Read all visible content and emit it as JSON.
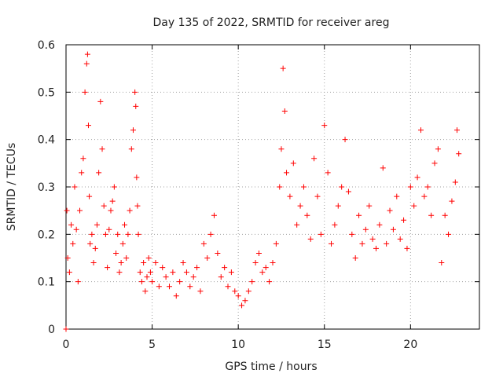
{
  "chart_data": {
    "type": "scatter",
    "title": "Day 135 of 2022, SRMTID for receiver areg",
    "xlabel": "GPS time / hours",
    "ylabel": "SRMTID / TECUs",
    "xlim": [
      0,
      24
    ],
    "ylim": [
      0,
      0.6
    ],
    "x_ticks": [
      0,
      5,
      10,
      15,
      20
    ],
    "x_tick_labels": [
      "0",
      "5",
      "10",
      "15",
      "20"
    ],
    "y_ticks": [
      0,
      0.1,
      0.2,
      0.3,
      0.4,
      0.5,
      0.6
    ],
    "y_tick_labels": [
      "0",
      "0.1",
      "0.2",
      "0.3",
      "0.4",
      "0.5",
      "0.6"
    ],
    "grid": true,
    "marker": "+",
    "color": "#ff0000",
    "series": [
      {
        "name": "SRMTID",
        "x": [
          0.0,
          0.05,
          0.1,
          0.2,
          0.3,
          0.4,
          0.5,
          0.6,
          0.7,
          0.8,
          0.9,
          1.0,
          1.1,
          1.2,
          1.25,
          1.3,
          1.35,
          1.4,
          1.5,
          1.6,
          1.7,
          1.8,
          1.9,
          2.0,
          2.1,
          2.2,
          2.3,
          2.4,
          2.5,
          2.6,
          2.7,
          2.8,
          2.9,
          3.0,
          3.1,
          3.2,
          3.3,
          3.4,
          3.5,
          3.6,
          3.7,
          3.8,
          3.9,
          4.0,
          4.05,
          4.1,
          4.15,
          4.2,
          4.3,
          4.4,
          4.5,
          4.6,
          4.7,
          4.8,
          4.9,
          5.0,
          5.2,
          5.4,
          5.6,
          5.8,
          6.0,
          6.2,
          6.4,
          6.6,
          6.8,
          7.0,
          7.2,
          7.4,
          7.6,
          7.8,
          8.0,
          8.2,
          8.4,
          8.6,
          8.8,
          9.0,
          9.2,
          9.4,
          9.6,
          9.8,
          10.0,
          10.2,
          10.4,
          10.6,
          10.8,
          11.0,
          11.2,
          11.4,
          11.6,
          11.8,
          12.0,
          12.2,
          12.4,
          12.5,
          12.6,
          12.7,
          12.8,
          13.0,
          13.2,
          13.4,
          13.6,
          13.8,
          14.0,
          14.2,
          14.4,
          14.6,
          14.8,
          15.0,
          15.2,
          15.4,
          15.6,
          15.8,
          16.0,
          16.2,
          16.4,
          16.6,
          16.8,
          17.0,
          17.2,
          17.4,
          17.6,
          17.8,
          18.0,
          18.2,
          18.4,
          18.6,
          18.8,
          19.0,
          19.2,
          19.4,
          19.6,
          19.8,
          20.0,
          20.2,
          20.4,
          20.6,
          20.8,
          21.0,
          21.2,
          21.4,
          21.6,
          21.8,
          22.0,
          22.2,
          22.4,
          22.6,
          22.7,
          22.8
        ],
        "y": [
          0.0,
          0.25,
          0.15,
          0.12,
          0.22,
          0.18,
          0.3,
          0.21,
          0.1,
          0.25,
          0.33,
          0.36,
          0.5,
          0.56,
          0.58,
          0.43,
          0.28,
          0.18,
          0.2,
          0.14,
          0.17,
          0.22,
          0.33,
          0.48,
          0.38,
          0.26,
          0.2,
          0.13,
          0.21,
          0.25,
          0.27,
          0.3,
          0.16,
          0.2,
          0.12,
          0.14,
          0.18,
          0.22,
          0.15,
          0.2,
          0.25,
          0.38,
          0.42,
          0.5,
          0.47,
          0.32,
          0.26,
          0.2,
          0.12,
          0.1,
          0.14,
          0.08,
          0.11,
          0.15,
          0.12,
          0.1,
          0.14,
          0.09,
          0.13,
          0.11,
          0.09,
          0.12,
          0.07,
          0.1,
          0.14,
          0.12,
          0.09,
          0.11,
          0.13,
          0.08,
          0.18,
          0.15,
          0.2,
          0.24,
          0.16,
          0.11,
          0.13,
          0.09,
          0.12,
          0.08,
          0.07,
          0.05,
          0.06,
          0.08,
          0.1,
          0.14,
          0.16,
          0.12,
          0.13,
          0.1,
          0.14,
          0.18,
          0.3,
          0.38,
          0.55,
          0.46,
          0.33,
          0.28,
          0.35,
          0.22,
          0.26,
          0.3,
          0.24,
          0.19,
          0.36,
          0.28,
          0.2,
          0.43,
          0.33,
          0.18,
          0.22,
          0.26,
          0.3,
          0.4,
          0.29,
          0.2,
          0.15,
          0.24,
          0.18,
          0.21,
          0.26,
          0.19,
          0.17,
          0.22,
          0.34,
          0.18,
          0.25,
          0.21,
          0.28,
          0.19,
          0.23,
          0.17,
          0.3,
          0.26,
          0.32,
          0.42,
          0.28,
          0.3,
          0.24,
          0.35,
          0.38,
          0.14,
          0.24,
          0.2,
          0.27,
          0.31,
          0.42,
          0.37
        ]
      }
    ]
  }
}
